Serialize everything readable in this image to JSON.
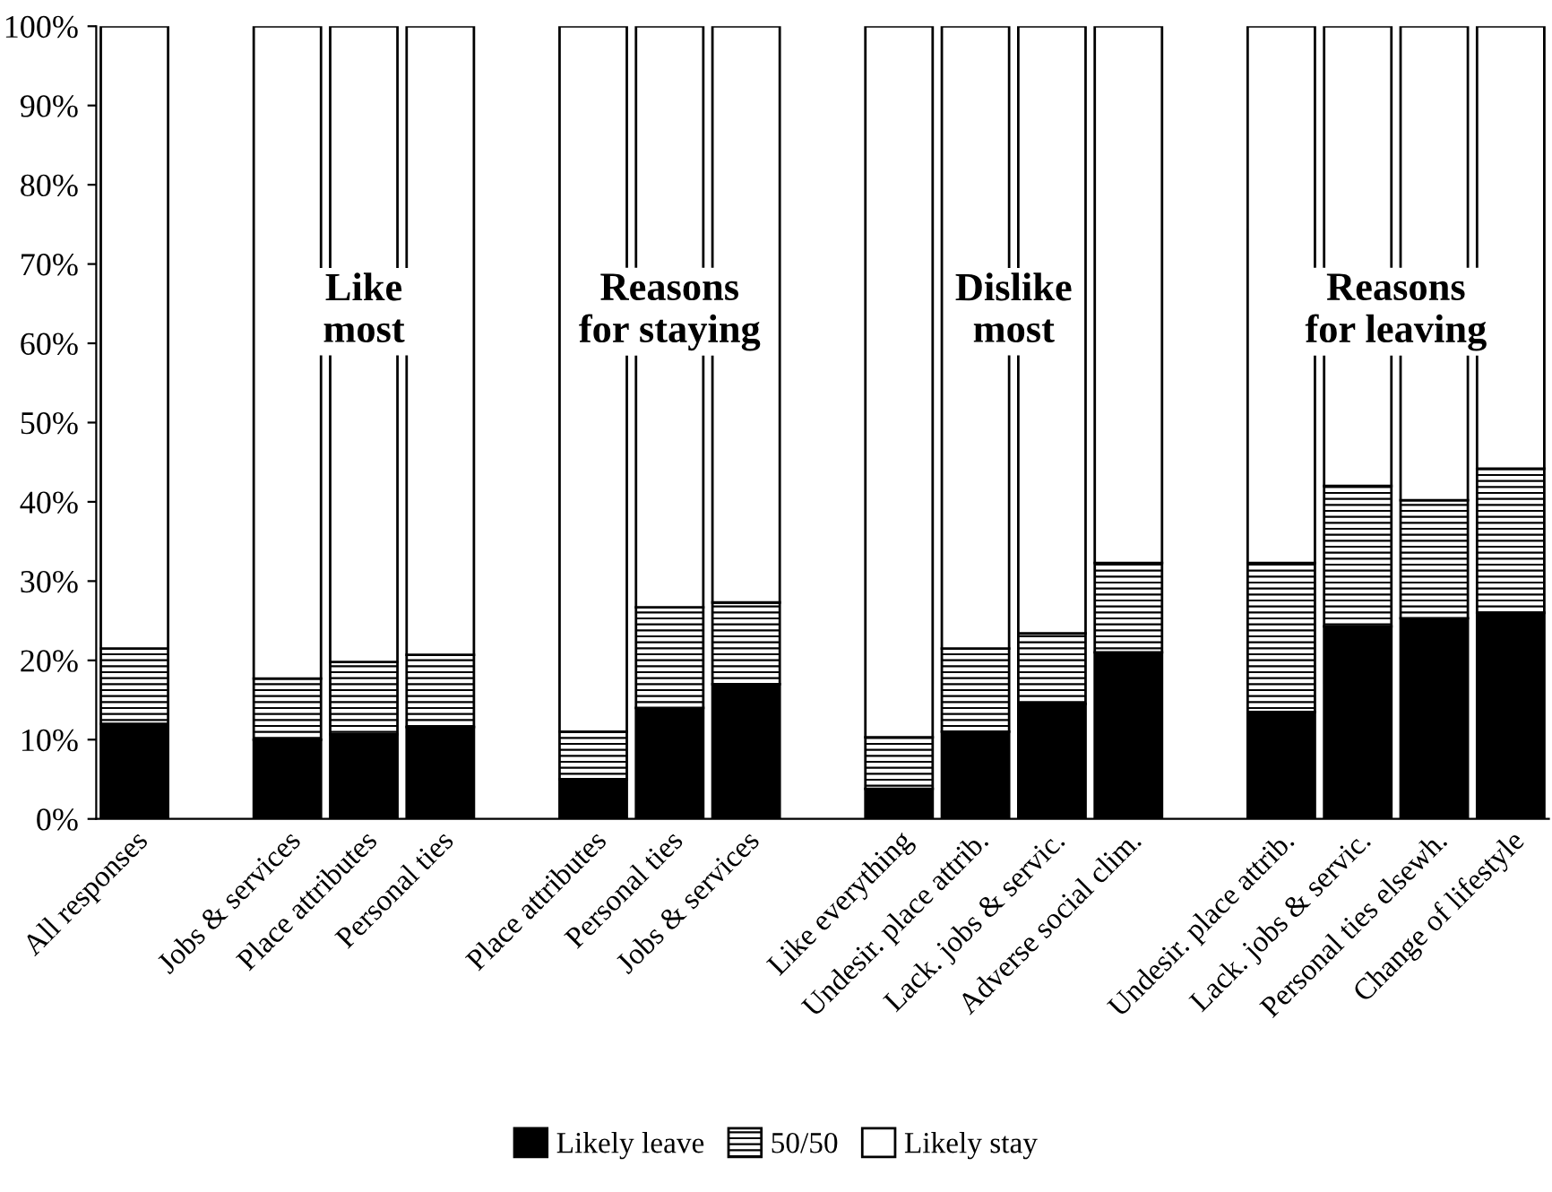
{
  "chart_data": {
    "type": "bar",
    "stacked": true,
    "categories": [
      "All responses",
      null,
      "Jobs & services",
      "Place attributes",
      "Personal ties",
      null,
      "Place attributes",
      "Personal ties",
      "Jobs & services",
      null,
      "Like everything",
      "Undesir. place attrib.",
      "Lack. jobs & servic.",
      "Adverse social clim.",
      null,
      "Undesir. place attrib.",
      "Lack. jobs & servic.",
      "Personal ties elsewh.",
      "Change of lifestyle"
    ],
    "series": [
      {
        "name": "Likely leave",
        "color": "#000000",
        "values": [
          12,
          null,
          10,
          10.7,
          11.6,
          null,
          5,
          14,
          17,
          null,
          3.8,
          11,
          14.5,
          21,
          null,
          13.5,
          24.3,
          25.3,
          26
        ]
      },
      {
        "name": "50/50",
        "color": "#000000",
        "values": [
          9.5,
          null,
          7.7,
          9.1,
          9.1,
          null,
          6,
          12.7,
          10.3,
          null,
          6.5,
          10.5,
          8.9,
          11.3,
          null,
          18.8,
          17.7,
          14.9,
          18.2
        ]
      },
      {
        "name": "Likely stay",
        "color": "#ffffff",
        "values": [
          78.5,
          null,
          82.3,
          80.2,
          79.3,
          null,
          89,
          73.3,
          72.7,
          null,
          89.7,
          78.5,
          76.6,
          67.7,
          null,
          67.7,
          58,
          59.8,
          55.8
        ]
      }
    ],
    "ylim": [
      0,
      100
    ],
    "yticks": [
      {
        "value": 0,
        "label": "0%"
      },
      {
        "value": 10,
        "label": "10%"
      },
      {
        "value": 20,
        "label": "20%"
      },
      {
        "value": 30,
        "label": "30%"
      },
      {
        "value": 40,
        "label": "40%"
      },
      {
        "value": 50,
        "label": "50%"
      },
      {
        "value": 60,
        "label": "60%"
      },
      {
        "value": 70,
        "label": "70%"
      },
      {
        "value": 80,
        "label": "80%"
      },
      {
        "value": 90,
        "label": "90%"
      },
      {
        "value": 100,
        "label": "100%"
      }
    ],
    "annotations": [
      "Like\nmost",
      "Reasons\nfor staying",
      "Dislike\nmost",
      "Reasons\nfor leaving"
    ],
    "legend": "bottom",
    "grid": false
  }
}
